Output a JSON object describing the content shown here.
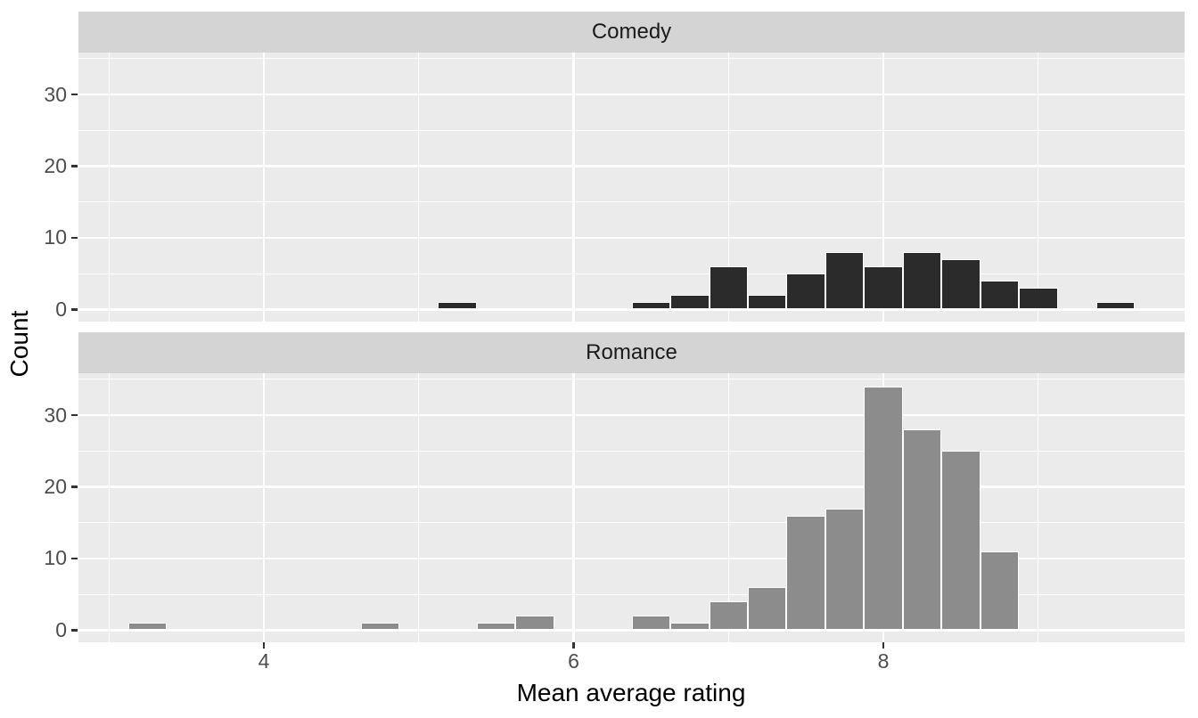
{
  "chart_data": {
    "type": "bar",
    "subtype": "faceted-histogram",
    "title": "",
    "xlabel": "Mean average rating",
    "ylabel": "Count",
    "binwidth": 0.25,
    "x_ticks": [
      4,
      6,
      8
    ],
    "x_minor_ticks": [
      3,
      5,
      7,
      9
    ],
    "y_ticks": [
      0,
      10,
      20,
      30
    ],
    "y_minor_ticks": [
      5,
      15,
      25,
      35
    ],
    "x_range": [
      2.803,
      9.945
    ],
    "y_range": [
      -1.68,
      35.84
    ],
    "grid": "major+minor",
    "legend_position": "none",
    "facets": [
      {
        "label": "Comedy",
        "bar_fill": "#2b2b2b",
        "bars": [
          {
            "x": 5.25,
            "count": 1
          },
          {
            "x": 6.5,
            "count": 1
          },
          {
            "x": 6.75,
            "count": 2
          },
          {
            "x": 7.0,
            "count": 6
          },
          {
            "x": 7.25,
            "count": 2
          },
          {
            "x": 7.5,
            "count": 5
          },
          {
            "x": 7.75,
            "count": 8
          },
          {
            "x": 8.0,
            "count": 6
          },
          {
            "x": 8.25,
            "count": 8
          },
          {
            "x": 8.5,
            "count": 7
          },
          {
            "x": 8.75,
            "count": 4
          },
          {
            "x": 9.0,
            "count": 3
          },
          {
            "x": 9.5,
            "count": 1
          }
        ]
      },
      {
        "label": "Romance",
        "bar_fill": "#8c8c8c",
        "bars": [
          {
            "x": 3.25,
            "count": 1
          },
          {
            "x": 4.75,
            "count": 1
          },
          {
            "x": 5.5,
            "count": 1
          },
          {
            "x": 5.75,
            "count": 2
          },
          {
            "x": 6.5,
            "count": 2
          },
          {
            "x": 6.75,
            "count": 1
          },
          {
            "x": 7.0,
            "count": 4
          },
          {
            "x": 7.25,
            "count": 6
          },
          {
            "x": 7.5,
            "count": 16
          },
          {
            "x": 7.75,
            "count": 17
          },
          {
            "x": 8.0,
            "count": 34
          },
          {
            "x": 8.25,
            "count": 28
          },
          {
            "x": 8.5,
            "count": 25
          },
          {
            "x": 8.75,
            "count": 11
          }
        ]
      }
    ]
  },
  "colors": {
    "background": "#ffffff",
    "panel_bg": "#ebebeb",
    "strip_bg": "#d4d4d4",
    "gridline": "#ffffff",
    "bar_stroke": "#ffffff",
    "tick_mark": "#333333",
    "axis_text": "#4d4d4d",
    "axis_title": "#000000",
    "strip_text": "#1a1a1a"
  }
}
